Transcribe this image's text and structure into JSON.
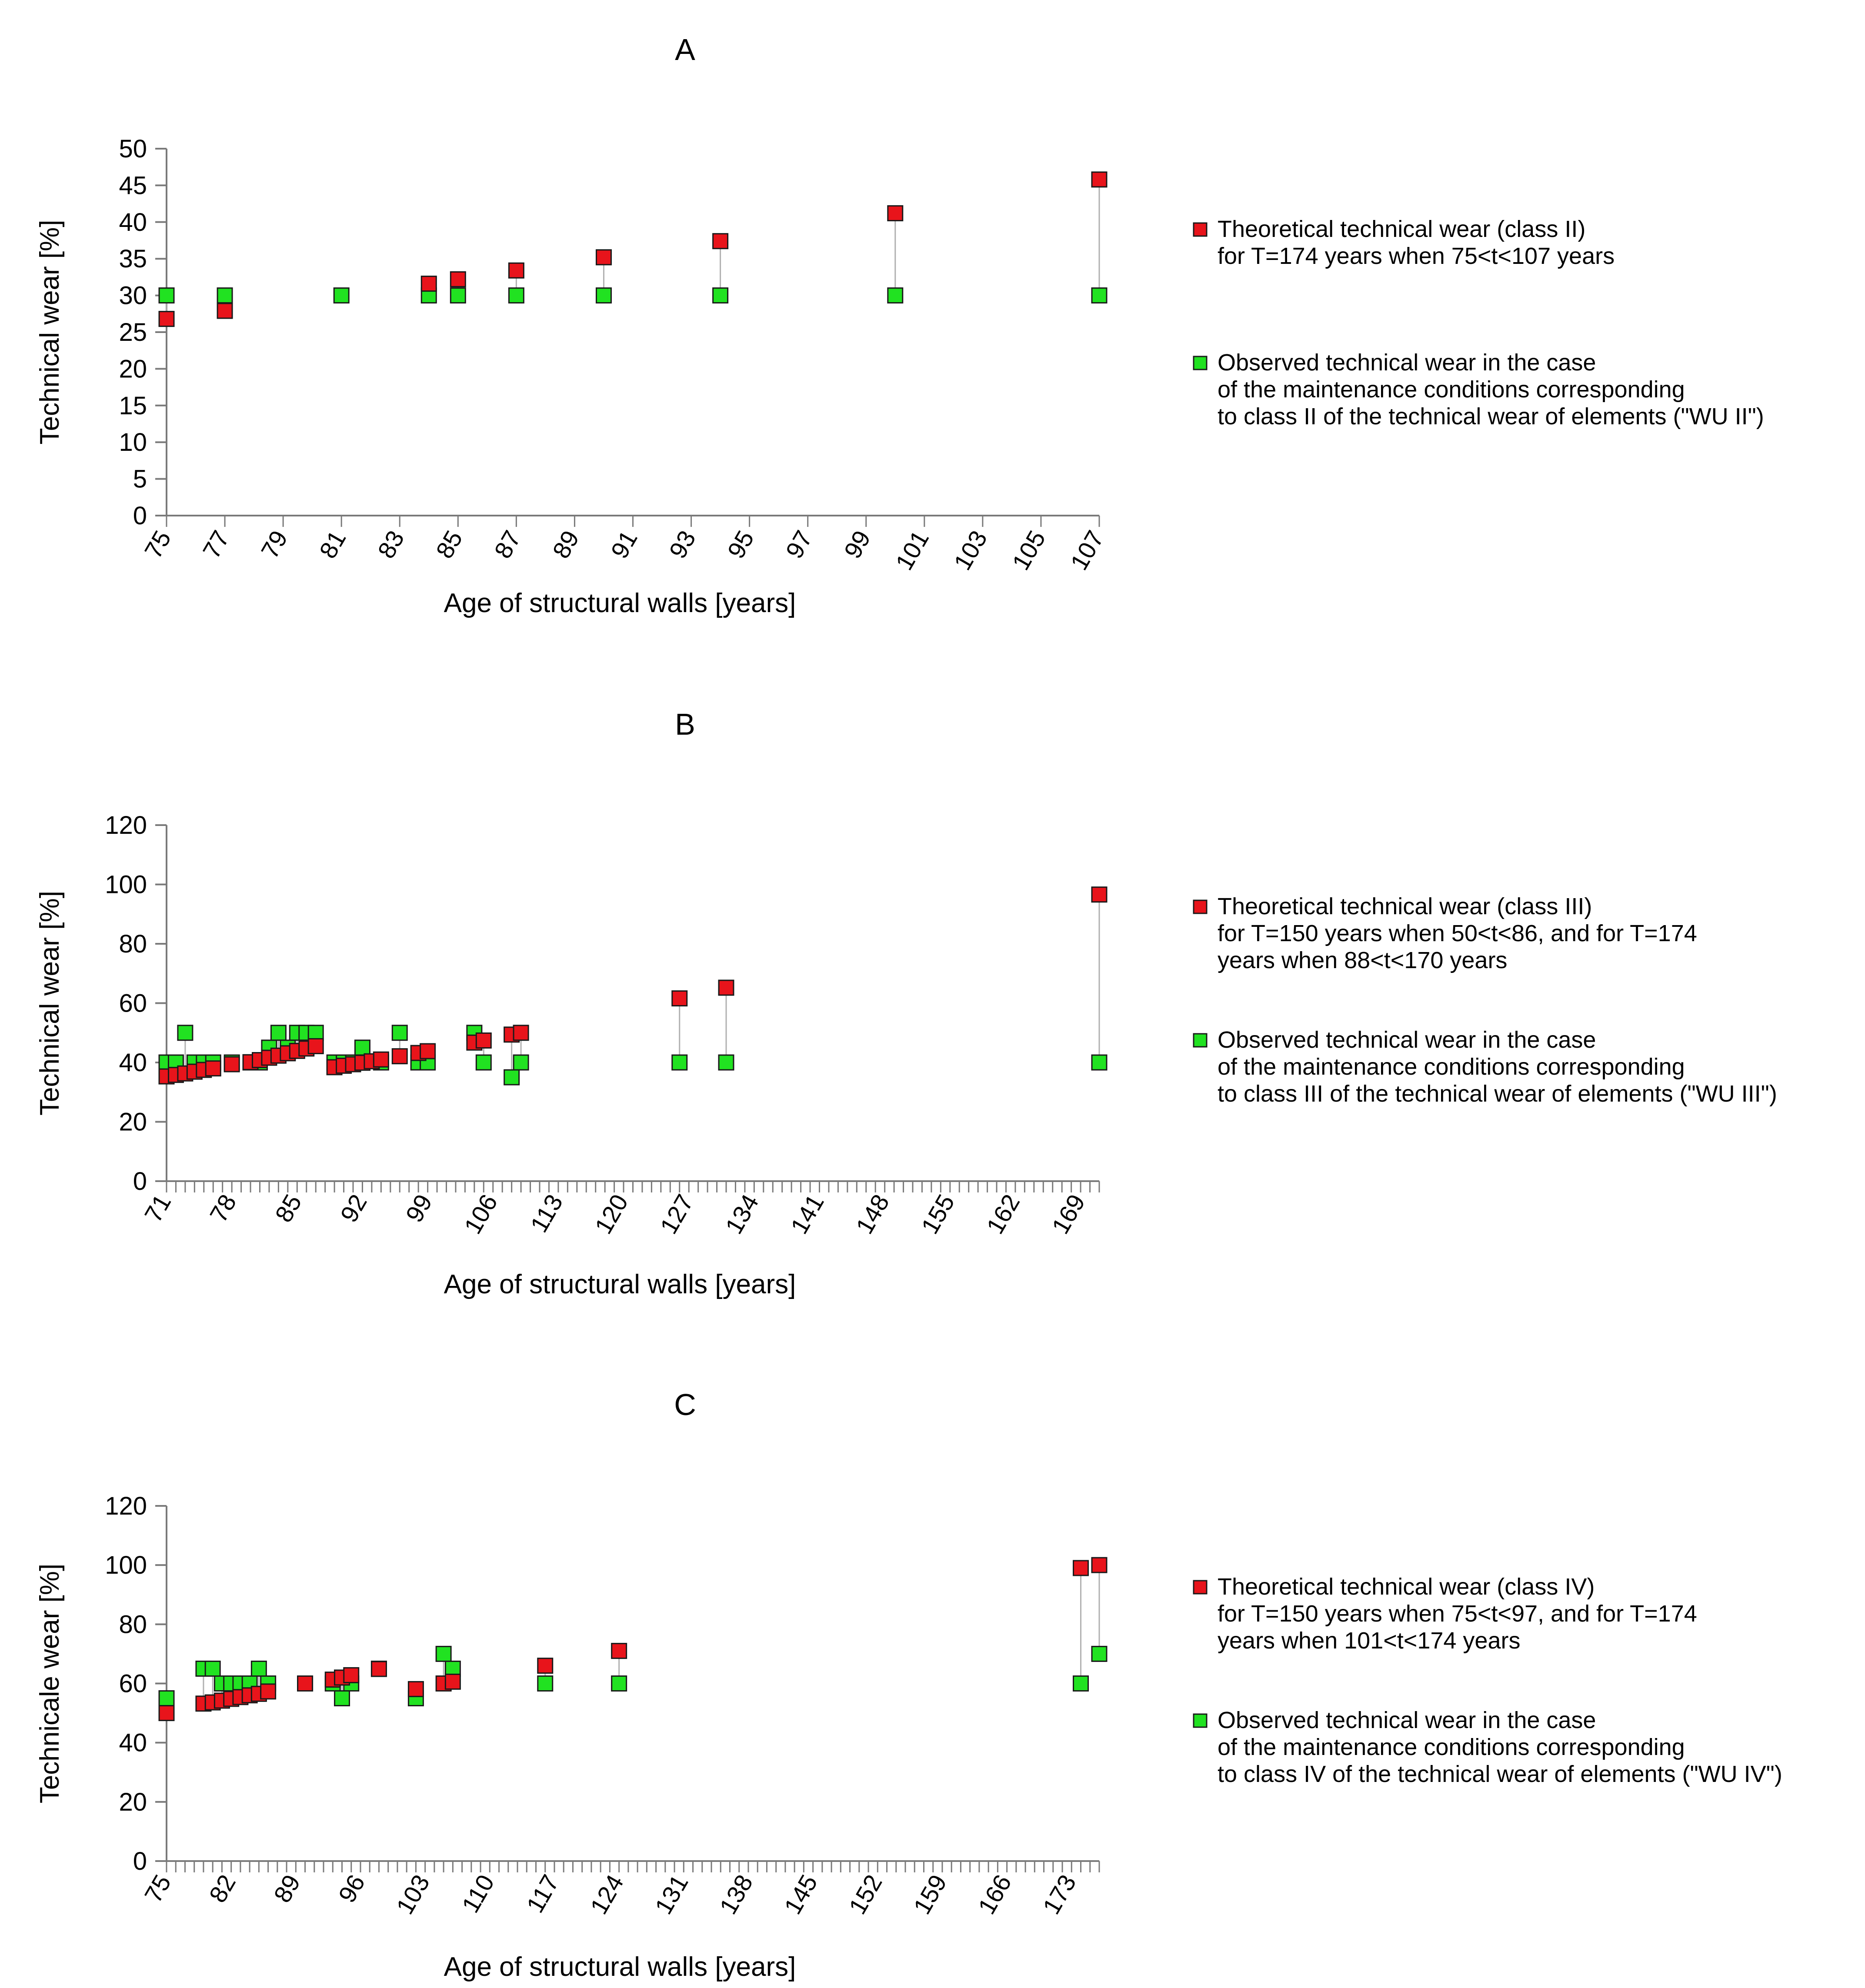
{
  "chart_data": [
    {
      "type": "scatter",
      "panel": "A",
      "title": "A",
      "xlabel": "Age of structural walls [years]",
      "ylabel": "Technical wear [%]",
      "xlim": [
        75,
        107
      ],
      "ylim": [
        0,
        50
      ],
      "x_tick_values": [
        75,
        77,
        79,
        81,
        83,
        85,
        87,
        89,
        91,
        93,
        95,
        97,
        99,
        101,
        103,
        105,
        107
      ],
      "x_tick_labels": [
        "75",
        "77",
        "79",
        "81",
        "83",
        "85",
        "87",
        "89",
        "91",
        "93",
        "95",
        "97",
        "99",
        "101",
        "103",
        "105",
        "107"
      ],
      "y_tick_values": [
        0,
        5,
        10,
        15,
        20,
        25,
        30,
        35,
        40,
        45,
        50
      ],
      "y_tick_labels": [
        "0",
        "5",
        "10",
        "15",
        "20",
        "25",
        "30",
        "35",
        "40",
        "45",
        "50"
      ],
      "connect_pairs": true,
      "series": [
        {
          "name": "Theoretical technical wear (class II)",
          "legend_lines": [
            "Theoretical technical wear (class II)",
            "for T=174 years when 75<t<107 years"
          ],
          "color": "#e8141b",
          "points": [
            [
              75,
              26.8
            ],
            [
              77,
              27.9
            ],
            [
              84,
              31.6
            ],
            [
              85,
              32.2
            ],
            [
              87,
              33.4
            ],
            [
              90,
              35.2
            ],
            [
              94,
              37.4
            ],
            [
              100,
              41.2
            ],
            [
              107,
              45.8
            ]
          ]
        },
        {
          "name": "Observed technical wear in the case",
          "legend_lines": [
            "Observed technical wear in the case",
            "of the maintenance conditions corresponding",
            "to class II of the technical wear of elements (\"WU II\")"
          ],
          "color": "#21e221",
          "points": [
            [
              75,
              30
            ],
            [
              77,
              30
            ],
            [
              81,
              30
            ],
            [
              84,
              30
            ],
            [
              85,
              30
            ],
            [
              87,
              30
            ],
            [
              90,
              30
            ],
            [
              94,
              30
            ],
            [
              100,
              30
            ],
            [
              107,
              30
            ]
          ]
        }
      ]
    },
    {
      "type": "scatter",
      "panel": "B",
      "title": "B",
      "xlabel": "Age of structural walls [years]",
      "ylabel": "Technical wear [%]",
      "xlim": [
        71,
        171
      ],
      "ylim": [
        0,
        120
      ],
      "x_tick_values": [
        71,
        78,
        85,
        92,
        99,
        106,
        113,
        120,
        127,
        134,
        141,
        148,
        155,
        162,
        169
      ],
      "x_tick_labels": [
        "71",
        "78",
        "85",
        "92",
        "99",
        "106",
        "113",
        "120",
        "127",
        "134",
        "141",
        "148",
        "155",
        "162",
        "169"
      ],
      "y_tick_values": [
        0,
        20,
        40,
        60,
        80,
        100,
        120
      ],
      "y_tick_labels": [
        "0",
        "20",
        "40",
        "60",
        "80",
        "100",
        "120"
      ],
      "connect_pairs": true,
      "series": [
        {
          "name": "Theoretical technical wear (class III)",
          "legend_lines": [
            "Theoretical technical wear (class III)",
            "for T=150 years when 50<t<86, and for T=174",
            "years when 88<t<170 years"
          ],
          "color": "#e8141b",
          "points": [
            [
              71,
              35.3
            ],
            [
              72,
              35.8
            ],
            [
              73,
              36.3
            ],
            [
              74,
              36.9
            ],
            [
              75,
              37.5
            ],
            [
              76,
              38.0
            ],
            [
              78,
              39.4
            ],
            [
              80,
              40.1
            ],
            [
              81,
              40.8
            ],
            [
              82,
              41.6
            ],
            [
              83,
              42.3
            ],
            [
              84,
              43.1
            ],
            [
              85,
              43.9
            ],
            [
              86,
              44.7
            ],
            [
              87,
              45.5
            ],
            [
              89,
              38.4
            ],
            [
              90,
              38.9
            ],
            [
              91,
              39.4
            ],
            [
              92,
              39.9
            ],
            [
              93,
              40.4
            ],
            [
              94,
              41.0
            ],
            [
              96,
              42.1
            ],
            [
              98,
              43.2
            ],
            [
              99,
              43.8
            ],
            [
              104,
              46.7
            ],
            [
              105,
              47.4
            ],
            [
              108,
              49.4
            ],
            [
              109,
              50.0
            ],
            [
              126,
              61.6
            ],
            [
              131,
              65.2
            ],
            [
              171,
              96.6
            ]
          ]
        },
        {
          "name": "Observed technical wear in the case",
          "legend_lines": [
            "Observed technical wear in the case",
            "of the maintenance conditions corresponding",
            "to class III of the technical wear of elements (\"WU III\")"
          ],
          "color": "#21e221",
          "points": [
            [
              71,
              40
            ],
            [
              72,
              40
            ],
            [
              73,
              50
            ],
            [
              74,
              40
            ],
            [
              75,
              40
            ],
            [
              76,
              40
            ],
            [
              78,
              40
            ],
            [
              80,
              40
            ],
            [
              81,
              40
            ],
            [
              82,
              45
            ],
            [
              83,
              50
            ],
            [
              84,
              45
            ],
            [
              85,
              50
            ],
            [
              86,
              50
            ],
            [
              87,
              50
            ],
            [
              89,
              40
            ],
            [
              90,
              40
            ],
            [
              91,
              40
            ],
            [
              92,
              45
            ],
            [
              94,
              40
            ],
            [
              96,
              50
            ],
            [
              98,
              40
            ],
            [
              99,
              40
            ],
            [
              104,
              50
            ],
            [
              105,
              40
            ],
            [
              108,
              35
            ],
            [
              109,
              40
            ],
            [
              126,
              40
            ],
            [
              131,
              40
            ],
            [
              171,
              40
            ]
          ]
        }
      ]
    },
    {
      "type": "scatter",
      "panel": "C",
      "title": "C",
      "xlabel": "Age of structural walls [years]",
      "ylabel": "Technicale wear [%]",
      "xlim": [
        75,
        176
      ],
      "ylim": [
        0,
        120
      ],
      "x_tick_values": [
        75,
        82,
        89,
        96,
        103,
        110,
        117,
        124,
        131,
        138,
        145,
        152,
        159,
        166,
        173
      ],
      "x_tick_labels": [
        "75",
        "82",
        "89",
        "96",
        "103",
        "110",
        "117",
        "124",
        "131",
        "138",
        "145",
        "152",
        "159",
        "166",
        "173"
      ],
      "y_tick_values": [
        0,
        20,
        40,
        60,
        80,
        100,
        120
      ],
      "y_tick_labels": [
        "0",
        "20",
        "40",
        "60",
        "80",
        "100",
        "120"
      ],
      "connect_pairs": true,
      "series": [
        {
          "name": "Theoretical technical wear (class IV)",
          "legend_lines": [
            "Theoretical technical wear (class IV)",
            "for T=150 years when 75<t<97, and for T=174",
            "years when 101<t<174 years"
          ],
          "color": "#e8141b",
          "points": [
            [
              75,
              50
            ],
            [
              79,
              53.2
            ],
            [
              80,
              53.6
            ],
            [
              81,
              54.2
            ],
            [
              82,
              54.8
            ],
            [
              83,
              55.4
            ],
            [
              84,
              56.0
            ],
            [
              85,
              56.5
            ],
            [
              86,
              57.3
            ],
            [
              90,
              60.0
            ],
            [
              93,
              61.3
            ],
            [
              94,
              62.0
            ],
            [
              95,
              62.8
            ],
            [
              98,
              64.9
            ],
            [
              102,
              58.1
            ],
            [
              105,
              60.0
            ],
            [
              106,
              60.6
            ],
            [
              116,
              66.0
            ],
            [
              124,
              71.0
            ],
            [
              174,
              99.0
            ],
            [
              176,
              100.0
            ]
          ]
        },
        {
          "name": "Observed technical wear in the case",
          "legend_lines": [
            "Observed technical wear in the case",
            "of the maintenance conditions corresponding",
            "to class IV of the technical wear of elements (\"WU IV\")"
          ],
          "color": "#21e221",
          "points": [
            [
              75,
              55
            ],
            [
              79,
              65
            ],
            [
              80,
              65
            ],
            [
              81,
              60
            ],
            [
              82,
              60
            ],
            [
              83,
              60
            ],
            [
              84,
              60
            ],
            [
              85,
              65
            ],
            [
              86,
              60
            ],
            [
              90,
              60
            ],
            [
              93,
              60
            ],
            [
              94,
              55
            ],
            [
              95,
              60
            ],
            [
              98,
              65
            ],
            [
              102,
              55
            ],
            [
              105,
              70
            ],
            [
              106,
              65
            ],
            [
              116,
              60
            ],
            [
              124,
              60
            ],
            [
              174,
              60
            ],
            [
              176,
              70
            ]
          ]
        }
      ]
    }
  ],
  "colors": {
    "theoretical": "#e8141b",
    "observed": "#21e221",
    "marker_stroke": "#1a1a1a",
    "connector": "#b0b0b0",
    "axis": "#7a7a7a"
  }
}
